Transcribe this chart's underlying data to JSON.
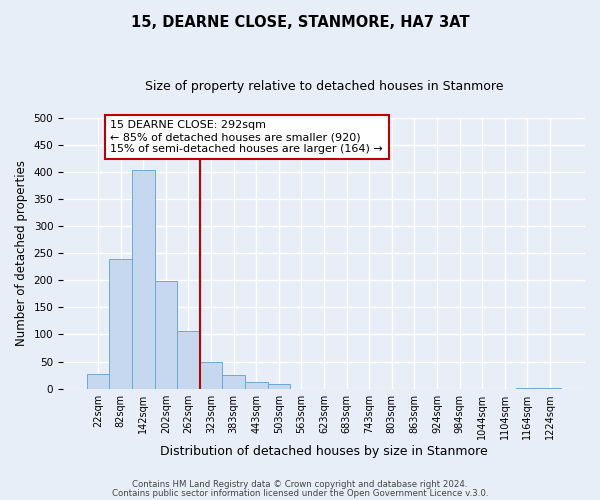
{
  "title": "15, DEARNE CLOSE, STANMORE, HA7 3AT",
  "subtitle": "Size of property relative to detached houses in Stanmore",
  "xlabel": "Distribution of detached houses by size in Stanmore",
  "ylabel": "Number of detached properties",
  "bar_labels": [
    "22sqm",
    "82sqm",
    "142sqm",
    "202sqm",
    "262sqm",
    "323sqm",
    "383sqm",
    "443sqm",
    "503sqm",
    "563sqm",
    "623sqm",
    "683sqm",
    "743sqm",
    "803sqm",
    "863sqm",
    "924sqm",
    "984sqm",
    "1044sqm",
    "1104sqm",
    "1164sqm",
    "1224sqm"
  ],
  "bar_values": [
    27,
    240,
    403,
    199,
    107,
    49,
    25,
    12,
    9,
    0,
    0,
    0,
    0,
    0,
    0,
    0,
    0,
    0,
    0,
    2,
    2
  ],
  "bar_color": "#c5d8ef",
  "bar_edge_color": "#6aaad4",
  "vline_color": "#c00000",
  "annotation_text": "15 DEARNE CLOSE: 292sqm\n← 85% of detached houses are smaller (920)\n15% of semi-detached houses are larger (164) →",
  "annotation_box_color": "#ffffff",
  "annotation_box_edge": "#c00000",
  "ylim": [
    0,
    500
  ],
  "yticks": [
    0,
    50,
    100,
    150,
    200,
    250,
    300,
    350,
    400,
    450,
    500
  ],
  "footer1": "Contains HM Land Registry data © Crown copyright and database right 2024.",
  "footer2": "Contains public sector information licensed under the Open Government Licence v.3.0.",
  "bg_color": "#e8eef8",
  "grid_color": "#ffffff",
  "title_fontsize": 10.5,
  "subtitle_fontsize": 9,
  "tick_fontsize": 7,
  "ylabel_fontsize": 8.5,
  "xlabel_fontsize": 9
}
